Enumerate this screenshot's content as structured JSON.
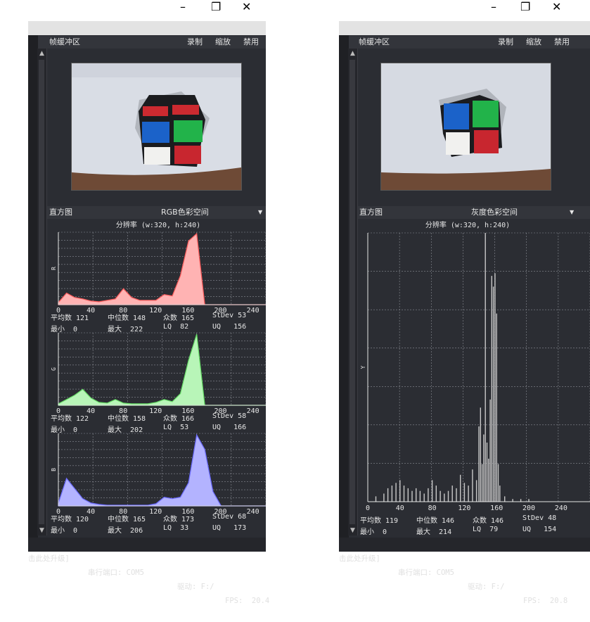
{
  "window_controls": {
    "minimize": "–",
    "maximize": "❐",
    "close": "✕"
  },
  "left": {
    "frame_buffer": {
      "title": "帧缓冲区",
      "actions": [
        "录制",
        "缩放",
        "禁用"
      ]
    },
    "histogram": {
      "title": "直方图",
      "mode": "RGB色彩空间",
      "resolution": "分辨率 (w:320, h:240)"
    },
    "channels": [
      {
        "axis": "R",
        "stats": [
          "平均数 121",
          "中位数 148",
          "众数 165",
          "StDev 53",
          "最小  0",
          "最大  222",
          "LQ  82",
          "UQ   156"
        ]
      },
      {
        "axis": "G",
        "stats": [
          "平均数 122",
          "中位数 158",
          "众数 166",
          "StDev 58",
          "最小  0",
          "最大  202",
          "LQ  53",
          "UQ   166"
        ]
      },
      {
        "axis": "B",
        "stats": [
          "平均数 120",
          "中位数 165",
          "众数 173",
          "StDev 68",
          "最小  0",
          "最大  206",
          "LQ  33",
          "UQ   173"
        ]
      }
    ],
    "ticks": [
      "0",
      "40",
      "80",
      "120",
      "160",
      "200",
      "240"
    ],
    "status": {
      "upgrade": "击此处升级]",
      "port": "串行端口: COM5",
      "drive": "驱动: F:/",
      "fps": "FPS:  20.4"
    }
  },
  "right": {
    "frame_buffer": {
      "title": "帧缓冲区",
      "actions": [
        "录制",
        "缩放",
        "禁用"
      ]
    },
    "histogram": {
      "title": "直方图",
      "mode": "灰度色彩空间",
      "resolution": "分辨率 (w:320, h:240)"
    },
    "channel": {
      "axis": "Y",
      "stats": [
        "平均数 119",
        "中位数 146",
        "众数 146",
        "StDev 48",
        "最小  0",
        "最大  214",
        "LQ  79",
        "UQ   154"
      ]
    },
    "ticks": [
      "0",
      "40",
      "80",
      "120",
      "160",
      "200",
      "240"
    ],
    "status": {
      "upgrade": "击此处升级]",
      "port": "串行端口: COM5",
      "drive": "驱动: F:/",
      "fps": "FPS:  20.8"
    }
  },
  "colors": {
    "red_fill": "#ffb3b3",
    "red_line": "#ff5a5a",
    "green_fill": "#b8f5b8",
    "green_line": "#66dd66",
    "blue_fill": "#b3b3ff",
    "blue_line": "#6a6aff",
    "gray_bar": "#c8c8c8"
  },
  "chart_data": [
    {
      "type": "area",
      "title": "R",
      "x": [
        0,
        10,
        20,
        30,
        40,
        50,
        60,
        70,
        80,
        90,
        100,
        110,
        120,
        130,
        140,
        150,
        160,
        170,
        180,
        190,
        200,
        210,
        220,
        230,
        240,
        255
      ],
      "values": [
        3,
        16,
        10,
        8,
        5,
        4,
        6,
        8,
        22,
        10,
        6,
        6,
        6,
        14,
        12,
        40,
        88,
        98,
        0,
        0,
        0,
        0,
        0,
        0,
        0,
        0
      ],
      "xlim": [
        0,
        255
      ]
    },
    {
      "type": "area",
      "title": "G",
      "x": [
        0,
        10,
        20,
        30,
        40,
        50,
        60,
        70,
        80,
        90,
        100,
        110,
        120,
        130,
        140,
        150,
        160,
        170,
        180,
        190,
        200,
        210,
        220,
        230,
        240,
        255
      ],
      "values": [
        2,
        8,
        14,
        22,
        10,
        4,
        3,
        8,
        3,
        2,
        2,
        2,
        4,
        8,
        5,
        16,
        62,
        98,
        0,
        0,
        0,
        0,
        0,
        0,
        0,
        0
      ],
      "xlim": [
        0,
        255
      ]
    },
    {
      "type": "area",
      "title": "B",
      "x": [
        0,
        10,
        20,
        30,
        40,
        50,
        60,
        70,
        80,
        90,
        100,
        110,
        120,
        130,
        140,
        150,
        160,
        170,
        180,
        190,
        200,
        210,
        220,
        230,
        240,
        255
      ],
      "values": [
        4,
        38,
        24,
        10,
        4,
        2,
        1,
        1,
        1,
        1,
        1,
        1,
        3,
        12,
        10,
        12,
        32,
        98,
        78,
        20,
        0,
        0,
        0,
        0,
        0,
        0
      ],
      "xlim": [
        0,
        255
      ]
    },
    {
      "type": "bar",
      "title": "Y",
      "x": [
        10,
        20,
        25,
        30,
        35,
        40,
        45,
        50,
        55,
        60,
        65,
        70,
        75,
        80,
        85,
        90,
        95,
        100,
        105,
        110,
        115,
        120,
        125,
        130,
        135,
        138,
        140,
        142,
        144,
        146,
        148,
        150,
        152,
        154,
        156,
        158,
        160,
        162,
        164,
        170,
        180,
        190,
        200
      ],
      "values": [
        2,
        3,
        5,
        6,
        7,
        8,
        6,
        5,
        4,
        5,
        4,
        3,
        5,
        8,
        6,
        4,
        3,
        4,
        6,
        5,
        10,
        7,
        6,
        12,
        8,
        28,
        35,
        14,
        25,
        100,
        22,
        16,
        38,
        84,
        80,
        85,
        70,
        14,
        6,
        2,
        1,
        1,
        1
      ],
      "xlim": [
        0,
        255
      ]
    }
  ]
}
